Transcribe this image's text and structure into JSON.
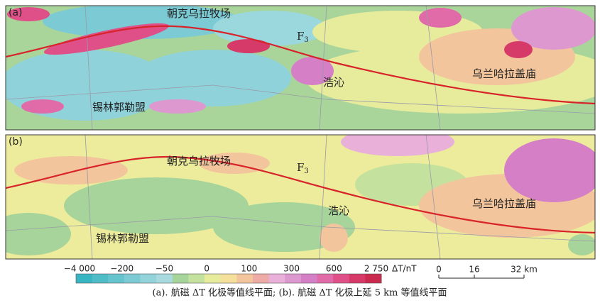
{
  "panel_a": {
    "label": "(a)",
    "places": [
      "朝克乌拉牧场",
      "浩沁",
      "乌兰哈拉盖庙",
      "锡林郭勒盟"
    ],
    "fault": {
      "name": "F",
      "subscript": "3"
    }
  },
  "panel_b": {
    "label": "(b)",
    "places": [
      "朝克乌拉牧场",
      "浩沁",
      "乌兰哈拉盖庙",
      "锡林郭勒盟"
    ],
    "fault": {
      "name": "F",
      "subscript": "3"
    }
  },
  "colorbar": {
    "ticks": [
      "−4 000",
      "−200",
      "−50",
      "0",
      "100",
      "300",
      "600",
      "2 750"
    ],
    "unit": "ΔT/nT",
    "colors": [
      "#38b4c2",
      "#4fbcc8",
      "#66c4ce",
      "#7ccbd4",
      "#93d3da",
      "#a9dadf",
      "#a7d49a",
      "#c4e29d",
      "#e6ec9c",
      "#f4e09a",
      "#f3c59c",
      "#eeaaa4",
      "#e9b1d9",
      "#dd98d0",
      "#d47fc6",
      "#e16ba8",
      "#df5088",
      "#d63a68",
      "#c92a4e"
    ]
  },
  "scale_bar": {
    "ticks": [
      "0",
      "16",
      "32 km"
    ]
  },
  "caption": "(a). 航磁 ΔT 化极等值线平面; (b). 航磁 ΔT 化极上延 5 km 等值线平面"
}
